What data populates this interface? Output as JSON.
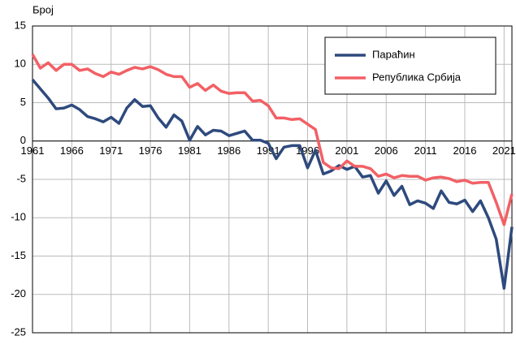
{
  "chart_data": {
    "type": "line",
    "y_label": "Број",
    "x": [
      1961,
      1962,
      1963,
      1964,
      1965,
      1966,
      1967,
      1968,
      1969,
      1970,
      1971,
      1972,
      1973,
      1974,
      1975,
      1976,
      1977,
      1978,
      1979,
      1980,
      1981,
      1982,
      1983,
      1984,
      1985,
      1986,
      1987,
      1988,
      1989,
      1990,
      1991,
      1992,
      1993,
      1994,
      1995,
      1996,
      1997,
      1998,
      1999,
      2000,
      2001,
      2002,
      2003,
      2004,
      2005,
      2006,
      2007,
      2008,
      2009,
      2010,
      2011,
      2012,
      2013,
      2014,
      2015,
      2016,
      2017,
      2018,
      2019,
      2020,
      2021,
      2022
    ],
    "series": [
      {
        "name": "Параћин",
        "color": "#2e4a7d",
        "values": [
          8.0,
          6.8,
          5.6,
          4.2,
          4.3,
          4.7,
          4.1,
          3.2,
          2.9,
          2.5,
          3.1,
          2.3,
          4.3,
          5.4,
          4.5,
          4.6,
          3.0,
          1.8,
          3.4,
          2.6,
          0.1,
          1.9,
          0.8,
          1.4,
          1.3,
          0.7,
          1.0,
          1.3,
          0.1,
          0.1,
          -0.3,
          -2.3,
          -0.8,
          -0.6,
          -0.6,
          -3.5,
          -1.2,
          -4.3,
          -3.9,
          -3.2,
          -3.7,
          -3.3,
          -4.7,
          -4.5,
          -6.8,
          -5.2,
          -7.1,
          -5.9,
          -8.3,
          -7.8,
          -8.1,
          -8.8,
          -6.5,
          -8.0,
          -8.2,
          -7.7,
          -9.2,
          -7.8,
          -10.0,
          -12.8,
          -19.2,
          -11.2
        ]
      },
      {
        "name": "Република Србија",
        "color": "#f26065",
        "values": [
          11.3,
          9.5,
          10.2,
          9.2,
          10.0,
          10.0,
          9.2,
          9.4,
          8.8,
          8.4,
          9.0,
          8.7,
          9.2,
          9.6,
          9.4,
          9.7,
          9.3,
          8.7,
          8.4,
          8.4,
          7.0,
          7.5,
          6.6,
          7.3,
          6.5,
          6.2,
          6.3,
          6.3,
          5.2,
          5.3,
          4.6,
          3.0,
          3.0,
          2.8,
          2.9,
          2.2,
          1.5,
          -2.8,
          -3.5,
          -3.6,
          -2.6,
          -3.3,
          -3.3,
          -3.6,
          -4.6,
          -4.3,
          -4.8,
          -4.5,
          -4.6,
          -4.6,
          -5.1,
          -4.8,
          -4.7,
          -4.9,
          -5.3,
          -5.1,
          -5.5,
          -5.4,
          -5.4,
          -8.0,
          -10.9,
          -6.9
        ]
      }
    ],
    "xlim": [
      1961,
      2022
    ],
    "xticks": [
      1961,
      1966,
      1971,
      1976,
      1981,
      1986,
      1991,
      1996,
      2001,
      2006,
      2011,
      2016,
      2021
    ],
    "ylim": [
      -25,
      15
    ],
    "yticks": [
      15,
      10,
      5,
      0,
      -5,
      -10,
      -15,
      -20,
      -25
    ],
    "grid": true,
    "legend": "upper right"
  }
}
